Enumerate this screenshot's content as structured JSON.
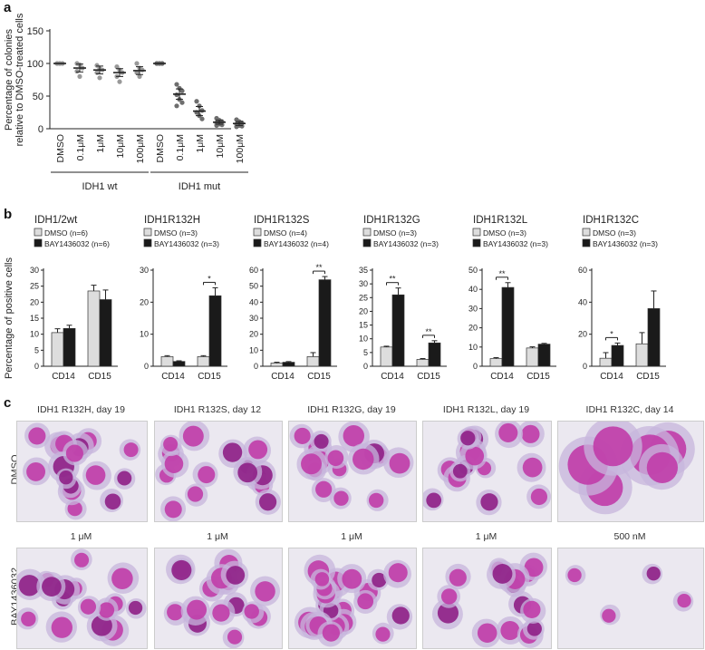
{
  "panel_letters": {
    "a": "a",
    "b": "b",
    "c": "c"
  },
  "chart_data": [
    {
      "id": "panel-a",
      "type": "scatter",
      "ylabel_line1": "Percentage of colonies",
      "ylabel_line2": "relative to DMSO-treated cells",
      "ylim": [
        0,
        150
      ],
      "yticks": [
        0,
        50,
        100,
        150
      ],
      "categories": [
        "DMSO",
        "0.1μM",
        "1μM",
        "10μM",
        "100μM",
        "DMSO",
        "0.1μM",
        "1μM",
        "10μM",
        "100μM"
      ],
      "groups": [
        {
          "label": "IDH1 wt",
          "from": 0,
          "to": 4
        },
        {
          "label": "IDH1 mut",
          "from": 5,
          "to": 9
        }
      ],
      "means": [
        100,
        93,
        90,
        86,
        89,
        100,
        53,
        27,
        10,
        8
      ],
      "sem": [
        0,
        6,
        6,
        6,
        6,
        0,
        8,
        7,
        3,
        3
      ],
      "points": [
        [
          100,
          100,
          100,
          100,
          100
        ],
        [
          100,
          98,
          93,
          88,
          80
        ],
        [
          97,
          92,
          90,
          86,
          78
        ],
        [
          95,
          90,
          86,
          80,
          72
        ],
        [
          100,
          93,
          90,
          86,
          80
        ],
        [
          100,
          100,
          100,
          100,
          100,
          100
        ],
        [
          68,
          62,
          58,
          52,
          45,
          40,
          35
        ],
        [
          42,
          35,
          28,
          25,
          20,
          15
        ],
        [
          16,
          13,
          11,
          9,
          7,
          6,
          5
        ],
        [
          14,
          11,
          9,
          7,
          5,
          4,
          3
        ]
      ],
      "colors": {
        "wt_points": "#999999",
        "mut_points": "#6e6e6e",
        "mean_line": "#222222"
      }
    },
    {
      "id": "panel-b",
      "type": "bar",
      "ylabel": "Percentage of positive cells",
      "categories": [
        "CD14",
        "CD15"
      ],
      "legend_labels": [
        "DMSO",
        "BAY1436032"
      ],
      "colors": {
        "DMSO": "#dddddd",
        "BAY1436032": "#1a1a1a"
      },
      "subcharts": [
        {
          "title": "IDH1/2wt",
          "legend": [
            "DMSO (n=6)",
            "BAY1436032 (n=6)"
          ],
          "ylim": [
            0,
            30
          ],
          "yticks": [
            0,
            5,
            10,
            15,
            20,
            25,
            30
          ],
          "dmso": [
            10.5,
            23.5
          ],
          "bay": [
            11.8,
            20.8
          ],
          "dmso_err": [
            1.2,
            1.8
          ],
          "bay_err": [
            1.0,
            3.0
          ],
          "sig": []
        },
        {
          "title": "IDH1R132H",
          "legend": [
            "DMSO (n=3)",
            "BAY1436032 (n=3)"
          ],
          "ylim": [
            0,
            30
          ],
          "yticks": [
            0,
            10,
            20,
            30
          ],
          "dmso": [
            3.0,
            3.0
          ],
          "bay": [
            1.5,
            22.0
          ],
          "dmso_err": [
            0.3,
            0.3
          ],
          "bay_err": [
            0.2,
            2.5
          ],
          "sig": [
            {
              "cat": 1,
              "label": "*"
            }
          ]
        },
        {
          "title": "IDH1R132S",
          "legend": [
            "DMSO (n=4)",
            "BAY1436032 (n=4)"
          ],
          "ylim": [
            0,
            60
          ],
          "yticks": [
            0,
            10,
            20,
            30,
            40,
            50,
            60
          ],
          "dmso": [
            2.0,
            6.0
          ],
          "bay": [
            2.5,
            54.0
          ],
          "dmso_err": [
            0.5,
            2.5
          ],
          "bay_err": [
            0.4,
            2.0
          ],
          "sig": [
            {
              "cat": 1,
              "label": "**"
            }
          ]
        },
        {
          "title": "IDH1R132G",
          "legend": [
            "DMSO (n=3)",
            "BAY1436032 (n=3)"
          ],
          "ylim": [
            0,
            35
          ],
          "yticks": [
            0,
            5,
            10,
            15,
            20,
            25,
            30,
            35
          ],
          "dmso": [
            7.0,
            2.5
          ],
          "bay": [
            26.0,
            8.5
          ],
          "dmso_err": [
            0.3,
            0.3
          ],
          "bay_err": [
            2.5,
            0.8
          ],
          "sig": [
            {
              "cat": 0,
              "label": "**"
            },
            {
              "cat": 1,
              "label": "**"
            }
          ]
        },
        {
          "title": "IDH1R132L",
          "legend": [
            "DMSO (n=3)",
            "BAY1436032 (n=3)"
          ],
          "ylim": [
            0,
            50
          ],
          "yticks": [
            0,
            10,
            20,
            30,
            40,
            50
          ],
          "dmso": [
            4.0,
            9.5
          ],
          "bay": [
            41.0,
            11.5
          ],
          "dmso_err": [
            0.5,
            0.6
          ],
          "bay_err": [
            2.5,
            0.4
          ],
          "sig": [
            {
              "cat": 0,
              "label": "**"
            }
          ]
        },
        {
          "title": "IDH1R132C",
          "legend": [
            "DMSO (n=3)",
            "BAY1436032 (n=3)"
          ],
          "ylim": [
            0,
            60
          ],
          "yticks": [
            0,
            20,
            40,
            60
          ],
          "dmso": [
            5.0,
            14.0
          ],
          "bay": [
            13.0,
            36.0
          ],
          "dmso_err": [
            3.5,
            7.0
          ],
          "bay_err": [
            1.5,
            11.0
          ],
          "sig": [
            {
              "cat": 0,
              "label": "*"
            }
          ]
        }
      ]
    }
  ],
  "panel_c": {
    "column_titles": [
      "IDH1 R132H, day 19",
      "IDH1 R132S, day 12",
      "IDH1 R132G, day 19",
      "IDH1 R132L, day 19",
      "IDH1 R132C, day 14"
    ],
    "row_labels": [
      "DMSO",
      "BAY1436032"
    ],
    "treated_doses": [
      "1 μM",
      "1 μM",
      "1 μM",
      "1 μM",
      "500 nM"
    ],
    "colors": {
      "background_light": "#ebe8f0",
      "cytoplasm": "#c7b6dc",
      "nucleus": "#c03ca8",
      "nucleus_dark": "#8e1f86"
    }
  }
}
